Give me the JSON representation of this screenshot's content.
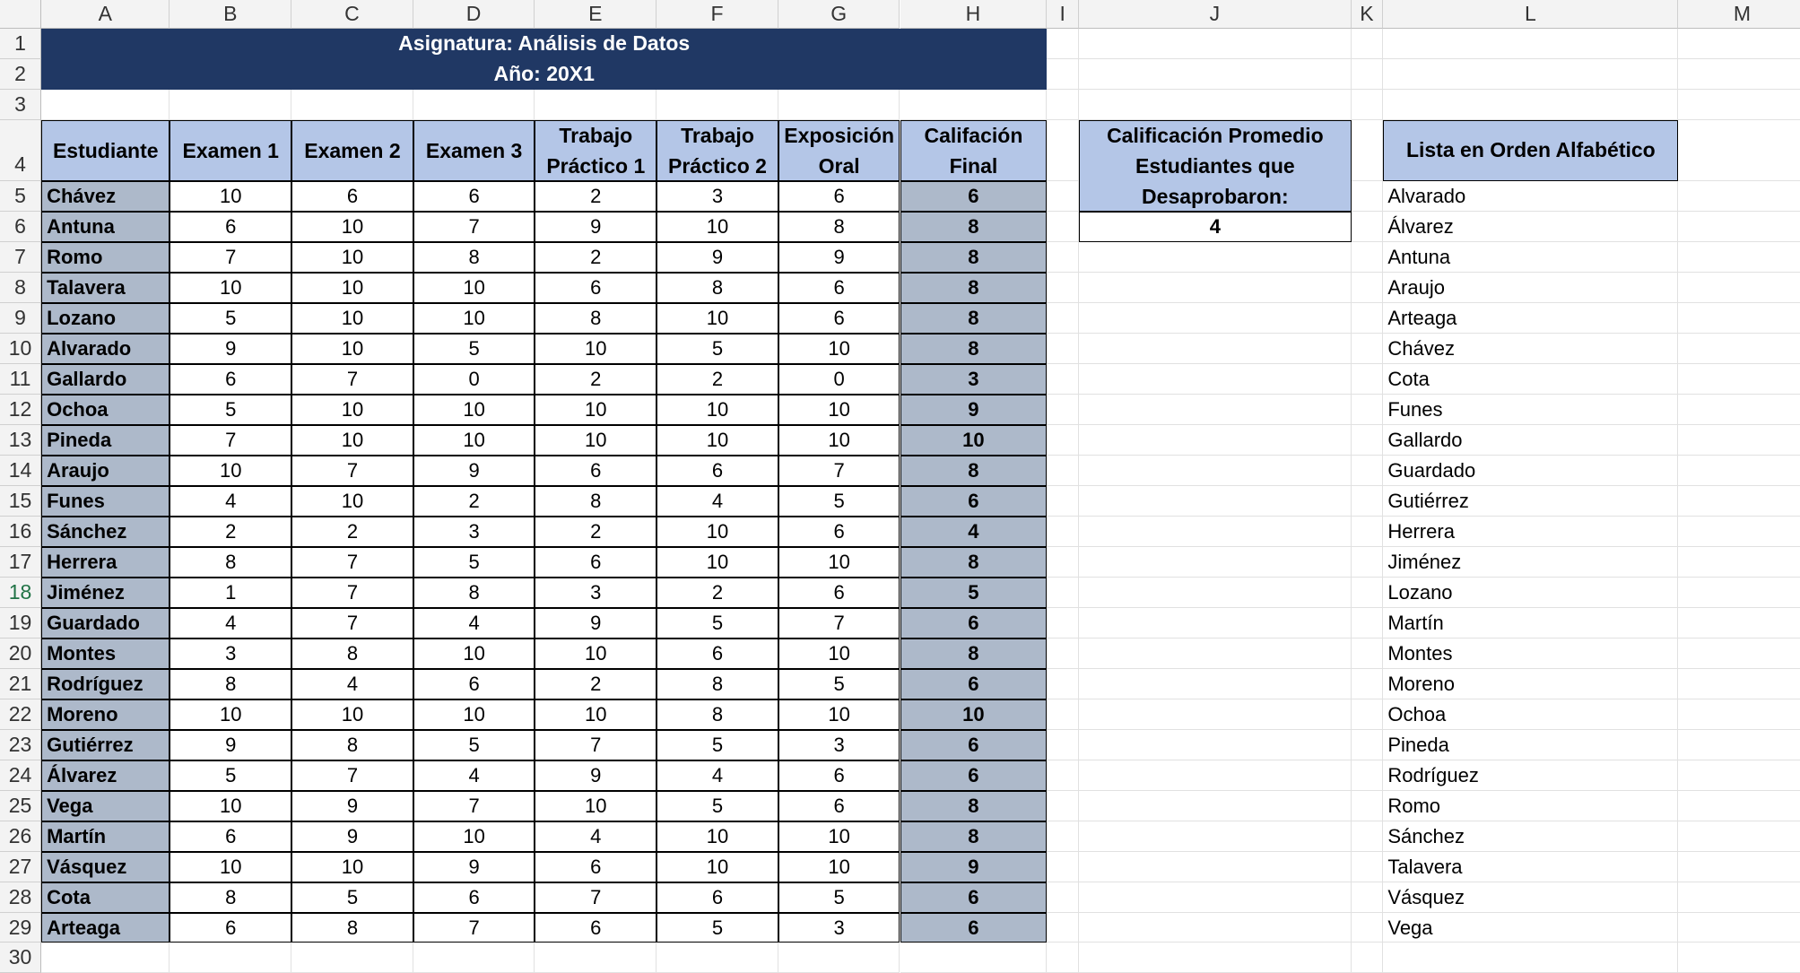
{
  "columns": [
    "A",
    "B",
    "C",
    "D",
    "E",
    "F",
    "G",
    "H",
    "I",
    "J",
    "K",
    "L",
    "M"
  ],
  "rows": [
    "1",
    "2",
    "3",
    "4",
    "5",
    "6",
    "7",
    "8",
    "9",
    "10",
    "11",
    "12",
    "13",
    "14",
    "15",
    "16",
    "17",
    "18",
    "19",
    "20",
    "21",
    "22",
    "23",
    "24",
    "25",
    "26",
    "27",
    "28",
    "29",
    "30"
  ],
  "title": {
    "line1": "Asignatura: Análisis de Datos",
    "line2": "Año: 20X1"
  },
  "table": {
    "headers": [
      "Estudiante",
      "Examen 1",
      "Examen 2",
      "Examen 3",
      "Trabajo Práctico 1",
      "Trabajo Práctico 2",
      "Exposición Oral",
      "Califación Final"
    ],
    "rows": [
      [
        "Chávez",
        "10",
        "6",
        "6",
        "2",
        "3",
        "6",
        "6"
      ],
      [
        "Antuna",
        "6",
        "10",
        "7",
        "9",
        "10",
        "8",
        "8"
      ],
      [
        "Romo",
        "7",
        "10",
        "8",
        "2",
        "9",
        "9",
        "8"
      ],
      [
        "Talavera",
        "10",
        "10",
        "10",
        "6",
        "8",
        "6",
        "8"
      ],
      [
        "Lozano",
        "5",
        "10",
        "10",
        "8",
        "10",
        "6",
        "8"
      ],
      [
        "Alvarado",
        "9",
        "10",
        "5",
        "10",
        "5",
        "10",
        "8"
      ],
      [
        "Gallardo",
        "6",
        "7",
        "0",
        "2",
        "2",
        "0",
        "3"
      ],
      [
        "Ochoa",
        "5",
        "10",
        "10",
        "10",
        "10",
        "10",
        "9"
      ],
      [
        "Pineda",
        "7",
        "10",
        "10",
        "10",
        "10",
        "10",
        "10"
      ],
      [
        "Araujo",
        "10",
        "7",
        "9",
        "6",
        "6",
        "7",
        "8"
      ],
      [
        "Funes",
        "4",
        "10",
        "2",
        "8",
        "4",
        "5",
        "6"
      ],
      [
        "Sánchez",
        "2",
        "2",
        "3",
        "2",
        "10",
        "6",
        "4"
      ],
      [
        "Herrera",
        "8",
        "7",
        "5",
        "6",
        "10",
        "10",
        "8"
      ],
      [
        "Jiménez",
        "1",
        "7",
        "8",
        "3",
        "2",
        "6",
        "5"
      ],
      [
        "Guardado",
        "4",
        "7",
        "4",
        "9",
        "5",
        "7",
        "6"
      ],
      [
        "Montes",
        "3",
        "8",
        "10",
        "10",
        "6",
        "10",
        "8"
      ],
      [
        "Rodríguez",
        "8",
        "4",
        "6",
        "2",
        "8",
        "5",
        "6"
      ],
      [
        "Moreno",
        "10",
        "10",
        "10",
        "10",
        "8",
        "10",
        "10"
      ],
      [
        "Gutiérrez",
        "9",
        "8",
        "5",
        "7",
        "5",
        "3",
        "6"
      ],
      [
        "Álvarez",
        "5",
        "7",
        "4",
        "9",
        "4",
        "6",
        "6"
      ],
      [
        "Vega",
        "10",
        "9",
        "7",
        "10",
        "5",
        "6",
        "8"
      ],
      [
        "Martín",
        "6",
        "9",
        "10",
        "4",
        "10",
        "10",
        "8"
      ],
      [
        "Vásquez",
        "10",
        "10",
        "9",
        "6",
        "10",
        "10",
        "9"
      ],
      [
        "Cota",
        "8",
        "5",
        "6",
        "7",
        "6",
        "5",
        "6"
      ],
      [
        "Arteaga",
        "6",
        "8",
        "7",
        "6",
        "5",
        "3",
        "6"
      ]
    ]
  },
  "summary": {
    "label": "Calificación Promedio Estudiantes que Desaprobaron:",
    "value": "4"
  },
  "sorted_list": {
    "header": "Lista en Orden Alfabético",
    "items": [
      "Alvarado",
      "Álvarez",
      "Antuna",
      "Araujo",
      "Arteaga",
      "Chávez",
      "Cota",
      "Funes",
      "Gallardo",
      "Guardado",
      "Gutiérrez",
      "Herrera",
      "Jiménez",
      "Lozano",
      "Martín",
      "Montes",
      "Moreno",
      "Ochoa",
      "Pineda",
      "Rodríguez",
      "Romo",
      "Sánchez",
      "Talavera",
      "Vásquez",
      "Vega"
    ]
  },
  "selected_row": "18",
  "colors": {
    "title_bg": "#203864",
    "header_bg": "#b4c6e7",
    "name_bg": "#adb9ca",
    "selected_row_text": "#217346"
  }
}
